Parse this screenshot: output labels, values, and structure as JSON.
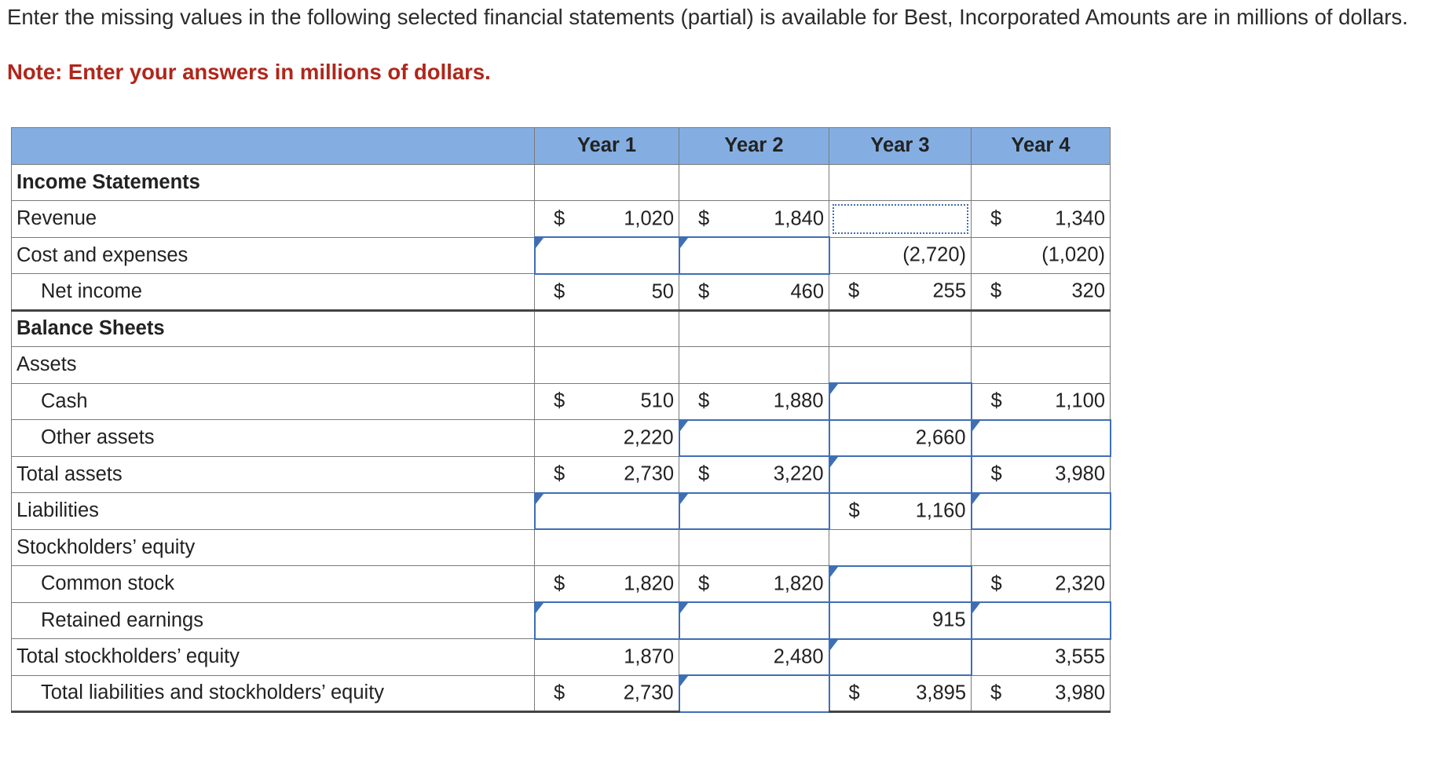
{
  "instructions": "Enter the missing values in the following selected financial statements (partial) is available for Best, Incorporated Amounts are in millions of dollars.",
  "note": "Note: Enter your answers in millions of dollars.",
  "header": {
    "years": [
      "Year 1",
      "Year 2",
      "Year 3",
      "Year 4"
    ]
  },
  "rows": [
    {
      "label": "Income Statements",
      "cells": [
        {
          "d": "",
          "v": ""
        },
        {
          "d": "",
          "v": ""
        },
        {
          "d": "",
          "v": ""
        },
        {
          "d": "",
          "v": ""
        }
      ]
    },
    {
      "label": "Revenue",
      "cells": [
        {
          "d": "$",
          "v": "1,020"
        },
        {
          "d": "$",
          "v": "1,840"
        },
        {
          "d": "",
          "v": ""
        },
        {
          "d": "$",
          "v": "1,340"
        }
      ]
    },
    {
      "label": "Cost and expenses",
      "cells": [
        {
          "d": "",
          "v": ""
        },
        {
          "d": "",
          "v": ""
        },
        {
          "d": "",
          "v": "(2,720)"
        },
        {
          "d": "",
          "v": "(1,020)"
        }
      ]
    },
    {
      "label": "Net income",
      "cells": [
        {
          "d": "$",
          "v": "50"
        },
        {
          "d": "$",
          "v": "460"
        },
        {
          "d": "$",
          "v": "255"
        },
        {
          "d": "$",
          "v": "320"
        }
      ]
    },
    {
      "label": "Balance Sheets",
      "cells": [
        {
          "d": "",
          "v": ""
        },
        {
          "d": "",
          "v": ""
        },
        {
          "d": "",
          "v": ""
        },
        {
          "d": "",
          "v": ""
        }
      ]
    },
    {
      "label": "Assets",
      "cells": [
        {
          "d": "",
          "v": ""
        },
        {
          "d": "",
          "v": ""
        },
        {
          "d": "",
          "v": ""
        },
        {
          "d": "",
          "v": ""
        }
      ]
    },
    {
      "label": "Cash",
      "cells": [
        {
          "d": "$",
          "v": "510"
        },
        {
          "d": "$",
          "v": "1,880"
        },
        {
          "d": "",
          "v": ""
        },
        {
          "d": "$",
          "v": "1,100"
        }
      ]
    },
    {
      "label": "Other assets",
      "cells": [
        {
          "d": "",
          "v": "2,220"
        },
        {
          "d": "",
          "v": ""
        },
        {
          "d": "",
          "v": "2,660"
        },
        {
          "d": "",
          "v": ""
        }
      ]
    },
    {
      "label": "Total assets",
      "cells": [
        {
          "d": "$",
          "v": "2,730"
        },
        {
          "d": "$",
          "v": "3,220"
        },
        {
          "d": "",
          "v": ""
        },
        {
          "d": "$",
          "v": "3,980"
        }
      ]
    },
    {
      "label": "Liabilities",
      "cells": [
        {
          "d": "",
          "v": ""
        },
        {
          "d": "",
          "v": ""
        },
        {
          "d": "$",
          "v": "1,160"
        },
        {
          "d": "",
          "v": ""
        }
      ]
    },
    {
      "label": "Stockholders’ equity",
      "cells": [
        {
          "d": "",
          "v": ""
        },
        {
          "d": "",
          "v": ""
        },
        {
          "d": "",
          "v": ""
        },
        {
          "d": "",
          "v": ""
        }
      ]
    },
    {
      "label": "Common stock",
      "cells": [
        {
          "d": "$",
          "v": "1,820"
        },
        {
          "d": "$",
          "v": "1,820"
        },
        {
          "d": "",
          "v": ""
        },
        {
          "d": "$",
          "v": "2,320"
        }
      ]
    },
    {
      "label": "Retained earnings",
      "cells": [
        {
          "d": "",
          "v": ""
        },
        {
          "d": "",
          "v": ""
        },
        {
          "d": "",
          "v": "915"
        },
        {
          "d": "",
          "v": ""
        }
      ]
    },
    {
      "label": "Total stockholders’ equity",
      "cells": [
        {
          "d": "",
          "v": "1,870"
        },
        {
          "d": "",
          "v": "2,480"
        },
        {
          "d": "",
          "v": ""
        },
        {
          "d": "",
          "v": "3,555"
        }
      ]
    },
    {
      "label": "Total liabilities and stockholders’ equity",
      "cells": [
        {
          "d": "$",
          "v": "2,730"
        },
        {
          "d": "",
          "v": ""
        },
        {
          "d": "$",
          "v": "3,895"
        },
        {
          "d": "$",
          "v": "3,980"
        }
      ]
    }
  ]
}
